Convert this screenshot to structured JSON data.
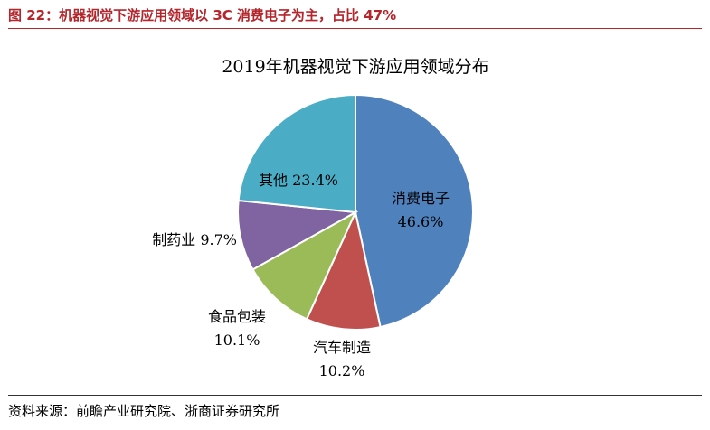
{
  "figure": {
    "header": "图 22：机器视觉下游应用领域以 3C 消费电子为主，占比 47%",
    "source": "资料来源：前瞻产业研究院、浙商证券研究所"
  },
  "chart_data": {
    "type": "pie",
    "title": "2019年机器视觉下游应用领域分布",
    "unit": "%",
    "slices": [
      {
        "name": "消费电子",
        "value": 46.6,
        "label": "46.6%",
        "color": "#4f81bd"
      },
      {
        "name": "汽车制造",
        "value": 10.2,
        "label": "10.2%",
        "color": "#c0504d"
      },
      {
        "name": "食品包装",
        "value": 10.1,
        "label": "10.1%",
        "color": "#9bbb59"
      },
      {
        "name": "制药业",
        "value": 9.7,
        "label": "9.7%",
        "color": "#8064a2"
      },
      {
        "name": "其他",
        "value": 23.4,
        "label": "23.4%",
        "color": "#4bacc6"
      }
    ]
  }
}
